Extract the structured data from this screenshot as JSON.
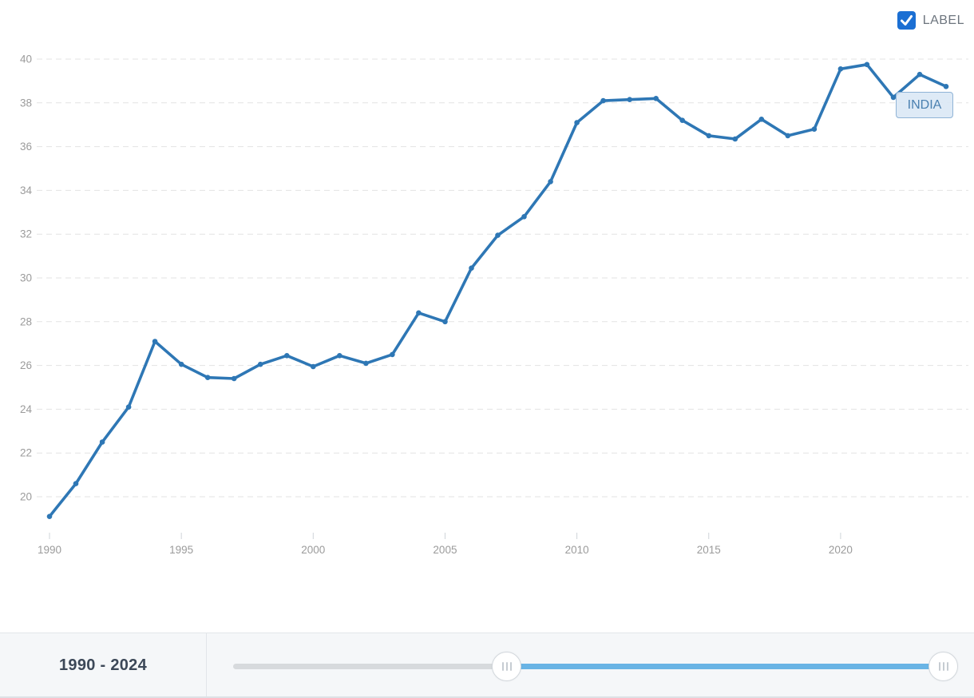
{
  "header": {
    "label_checkbox": {
      "label": "LABEL",
      "checked": true,
      "checkbox_color": "#1b6fd3"
    }
  },
  "chart_data": {
    "type": "line",
    "title": "",
    "xlabel": "",
    "ylabel": "",
    "grid": "dashed-horizontal",
    "legend_position": "none",
    "series_tag_label": "INDIA",
    "line_color": "#2e77b5",
    "axis_text_color": "#9b9b9b",
    "grid_color": "#e3e3e3",
    "xlim": [
      1989.5,
      2024.8
    ],
    "ylim": [
      18.8,
      40.7
    ],
    "xticks": [
      1990,
      1995,
      2000,
      2005,
      2010,
      2015,
      2020
    ],
    "yticks": [
      20,
      22,
      24,
      26,
      28,
      30,
      32,
      34,
      36,
      38,
      40
    ],
    "series": [
      {
        "name": "INDIA",
        "x": [
          1990,
          1991,
          1992,
          1993,
          1994,
          1995,
          1996,
          1997,
          1998,
          1999,
          2000,
          2001,
          2002,
          2003,
          2004,
          2005,
          2006,
          2007,
          2008,
          2009,
          2010,
          2011,
          2012,
          2013,
          2014,
          2015,
          2016,
          2017,
          2018,
          2019,
          2020,
          2021,
          2022,
          2023,
          2024
        ],
        "values": [
          19.1,
          20.6,
          22.5,
          24.1,
          27.1,
          26.05,
          25.45,
          25.4,
          26.05,
          26.45,
          25.95,
          26.45,
          26.1,
          26.5,
          28.4,
          28.0,
          30.45,
          31.95,
          32.8,
          34.4,
          37.1,
          38.1,
          38.15,
          38.2,
          37.2,
          36.5,
          36.35,
          37.25,
          36.5,
          36.8,
          39.55,
          39.75,
          38.25,
          39.3,
          38.75
        ]
      }
    ]
  },
  "range_bar": {
    "range_label": "1990 - 2024",
    "selected_start": 1990,
    "selected_end": 2024,
    "track_color": "#d7dadd",
    "selected_color": "#69b4e5"
  }
}
